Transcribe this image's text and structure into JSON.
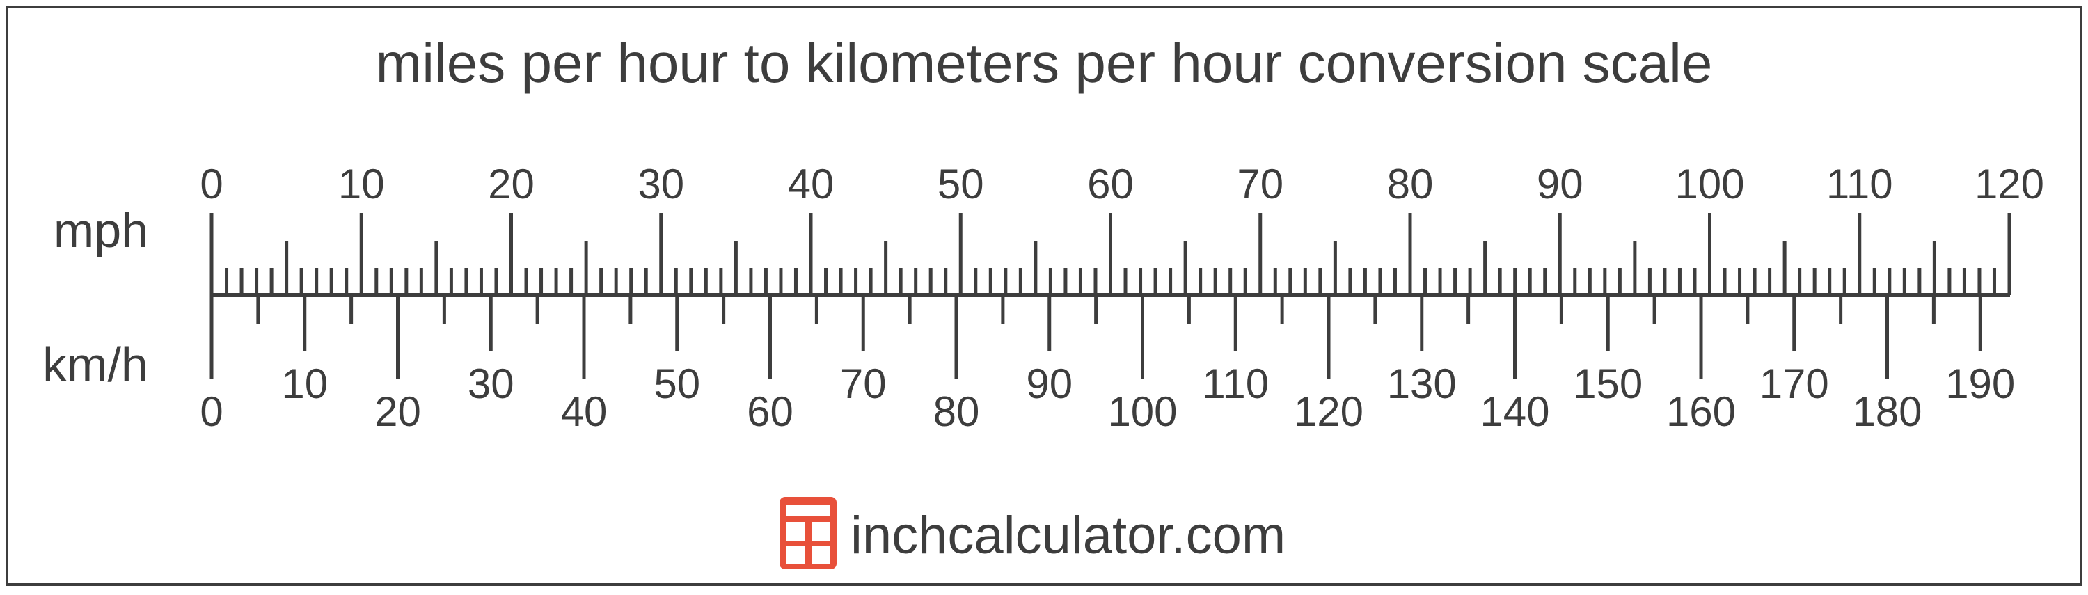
{
  "title": "miles per hour to kilometers per hour conversion scale",
  "top_scale": {
    "unit_label": "mph",
    "min": 0,
    "max": 120,
    "major_step": 10,
    "mid_step": 5,
    "minor_step": 1,
    "labels": [
      "0",
      "10",
      "20",
      "30",
      "40",
      "50",
      "60",
      "70",
      "80",
      "90",
      "100",
      "110",
      "120"
    ]
  },
  "bottom_scale": {
    "unit_label": "km/h",
    "min": 0,
    "max": 190,
    "major_step": 20,
    "mid_step": 10,
    "minor_step": 5,
    "labels_major": [
      "0",
      "20",
      "40",
      "60",
      "80",
      "100",
      "120",
      "140",
      "160",
      "180"
    ],
    "labels_mid": [
      "10",
      "30",
      "50",
      "70",
      "90",
      "110",
      "130",
      "150",
      "170",
      "190"
    ]
  },
  "conversion": {
    "km_per_mile": 1.609344
  },
  "branding": {
    "site": "inchcalculator.com",
    "logo_icon": "calculator-icon",
    "logo_color": "#e8503a"
  },
  "colors": {
    "ink": "#3d3d3d",
    "frame": "#3d3d3d",
    "background": "#ffffff"
  }
}
